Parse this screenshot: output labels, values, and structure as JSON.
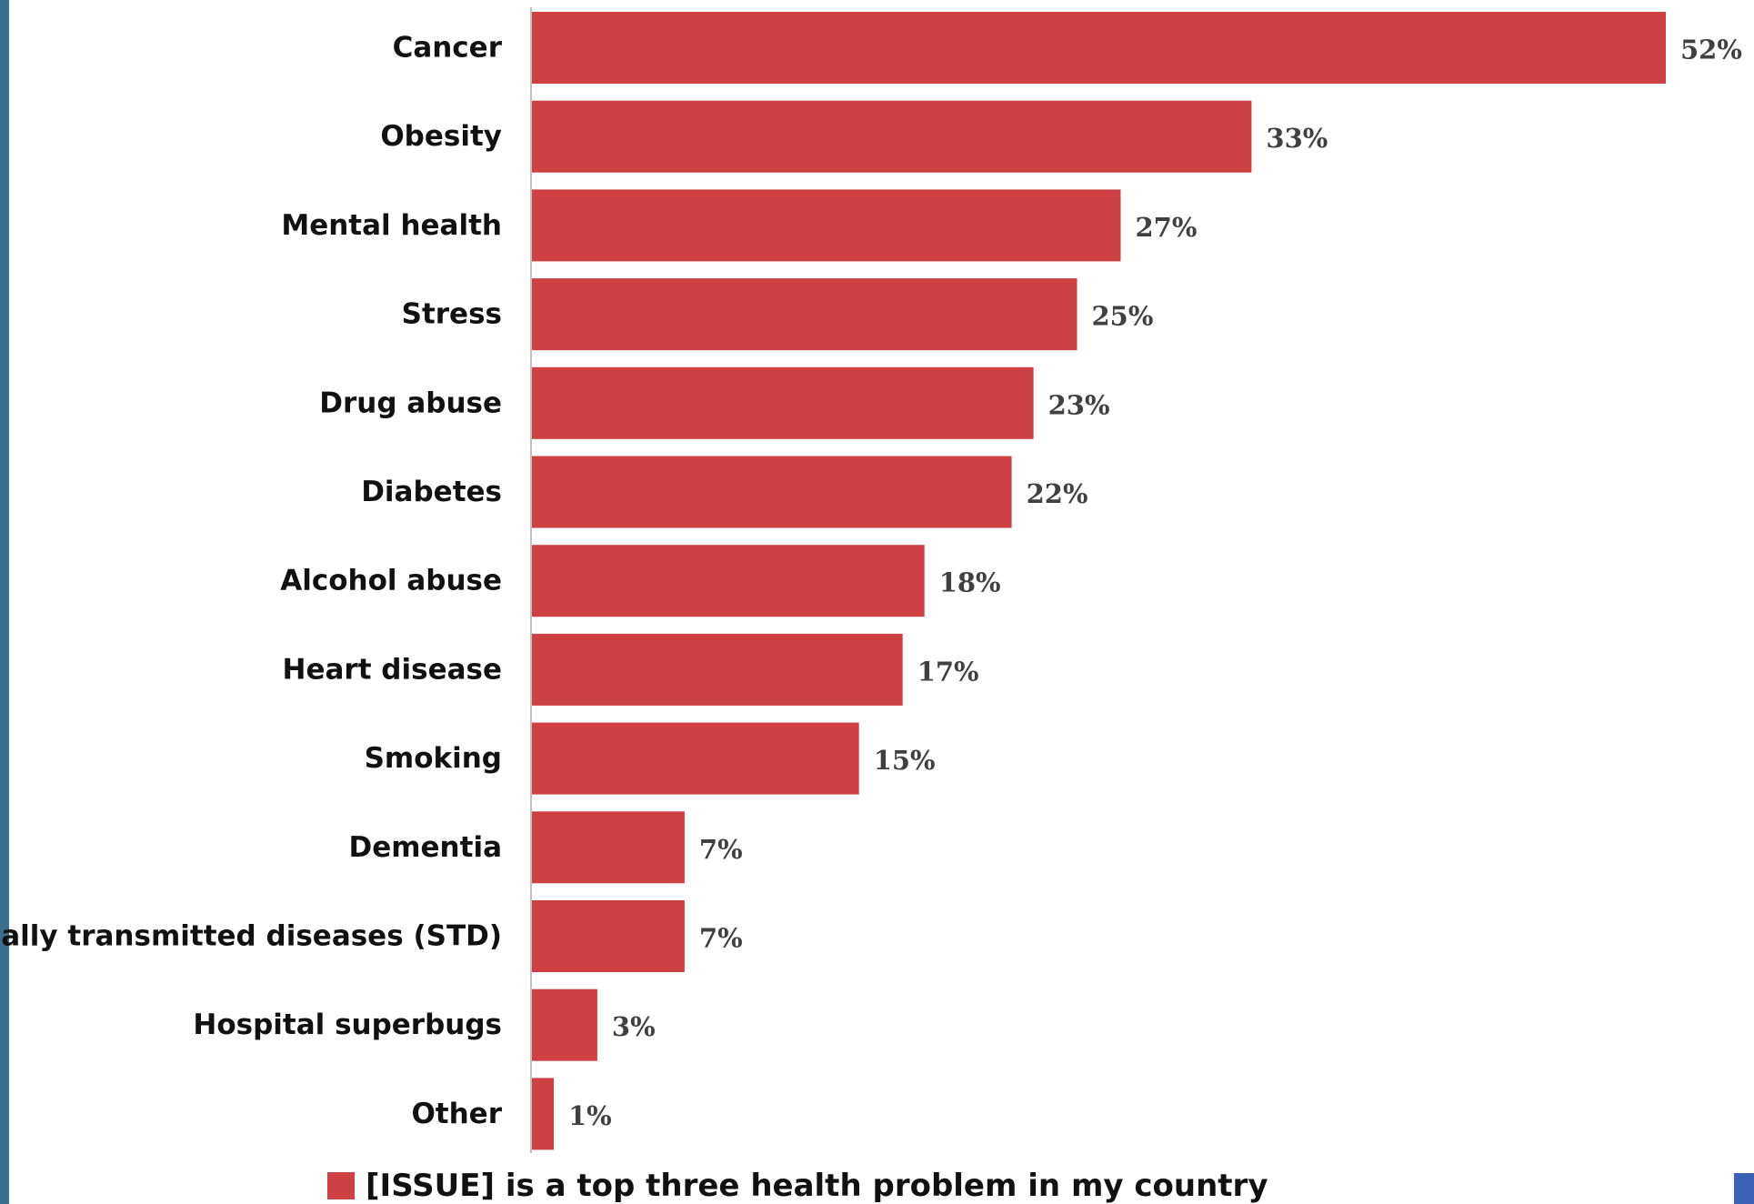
{
  "colors": {
    "bar": "#CF4043",
    "axis": "#BFBFBF",
    "stripe": "#3A6E8F",
    "corner": "#3B62B5"
  },
  "legend": {
    "label": "[ISSUE] is a top three health problem in my country"
  },
  "chart_data": {
    "type": "bar",
    "orientation": "horizontal",
    "categories": [
      "Cancer",
      "Obesity",
      "Mental health",
      "Stress",
      "Drug abuse",
      "Diabetes",
      "Alcohol abuse",
      "Heart disease",
      "Smoking",
      "Dementia",
      "Sexually transmitted diseases (STD)",
      "Hospital superbugs",
      "Other"
    ],
    "series": [
      {
        "name": "[ISSUE] is a top three health problem in my country",
        "values": [
          52,
          33,
          27,
          25,
          23,
          22,
          18,
          17,
          15,
          7,
          7,
          3,
          1
        ],
        "labels": [
          "52%",
          "33%",
          "27%",
          "25%",
          "23%",
          "22%",
          "18%",
          "17%",
          "15%",
          "7%",
          "7%",
          "3%",
          "1%"
        ]
      }
    ],
    "value_unit": "%",
    "xlim": [
      0,
      52
    ],
    "grid": false,
    "legend_position": "bottom"
  }
}
